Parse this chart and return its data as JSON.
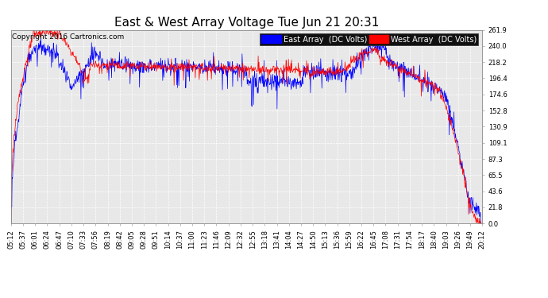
{
  "title": "East & West Array Voltage Tue Jun 21 20:31",
  "copyright": "Copyright 2016 Cartronics.com",
  "legend_east": "East Array  (DC Volts)",
  "legend_west": "West Array  (DC Volts)",
  "east_color": "#0000ff",
  "west_color": "#ff0000",
  "background_color": "#ffffff",
  "plot_background": "#e8e8e8",
  "grid_color": "#ffffff",
  "ylim": [
    0.0,
    261.9
  ],
  "yticks": [
    0.0,
    21.8,
    43.6,
    65.5,
    87.3,
    109.1,
    130.9,
    152.8,
    174.6,
    196.4,
    218.2,
    240.0,
    261.9
  ],
  "xtick_labels": [
    "05:12",
    "05:37",
    "06:01",
    "06:24",
    "06:47",
    "07:10",
    "07:33",
    "07:56",
    "08:19",
    "08:42",
    "09:05",
    "09:28",
    "09:51",
    "10:14",
    "10:37",
    "11:00",
    "11:23",
    "11:46",
    "12:09",
    "12:32",
    "12:55",
    "13:18",
    "13:41",
    "14:04",
    "14:27",
    "14:50",
    "15:13",
    "15:36",
    "15:59",
    "16:22",
    "16:45",
    "17:08",
    "17:31",
    "17:54",
    "18:17",
    "18:40",
    "19:03",
    "19:26",
    "19:49",
    "20:12"
  ],
  "title_fontsize": 11,
  "tick_fontsize": 6,
  "copyright_fontsize": 6.5,
  "legend_fontsize": 7
}
